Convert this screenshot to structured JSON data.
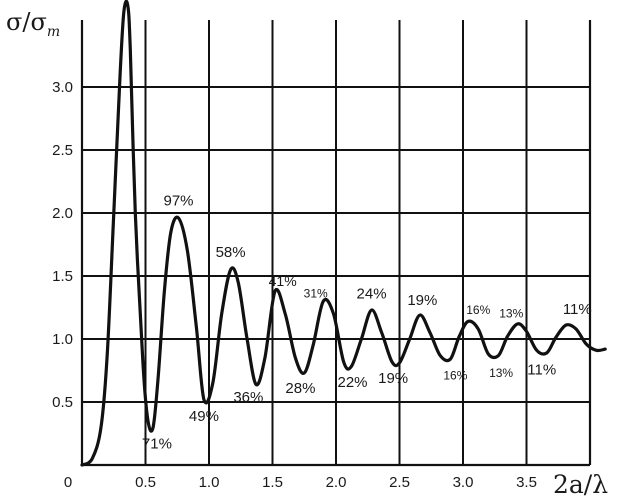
{
  "chart_data": {
    "type": "line",
    "ylabel": {
      "main": "σ/σ",
      "sub": "m"
    },
    "xlabel": "2a/λ",
    "xlim": [
      0,
      4.15
    ],
    "ylim": [
      0,
      3.6
    ],
    "xticks": [
      0,
      0.5,
      1.0,
      1.5,
      2.0,
      2.5,
      3.0,
      3.5
    ],
    "xtick_labels": [
      "0",
      "0.5",
      "1.0",
      "1.5",
      "2.0",
      "2.5",
      "3.0",
      "3.5"
    ],
    "yticks": [
      0.5,
      1.0,
      1.5,
      2.0,
      2.5,
      3.0
    ],
    "ytick_labels": [
      "0.5",
      "1.0",
      "1.5",
      "2.0",
      "2.5",
      "3.0"
    ],
    "grid": true,
    "series": [
      {
        "x": [
          0,
          0.08,
          0.15,
          0.2,
          0.25,
          0.3,
          0.33,
          0.36,
          0.38,
          0.42,
          0.48,
          0.52,
          0.56,
          0.6,
          0.65,
          0.7,
          0.76,
          0.83,
          0.9,
          0.96,
          1.03,
          1.1,
          1.17,
          1.23,
          1.3,
          1.37,
          1.44,
          1.52,
          1.6,
          1.68,
          1.75,
          1.82,
          1.9,
          1.98,
          2.06,
          2.12,
          2.2,
          2.28,
          2.36,
          2.44,
          2.5,
          2.58,
          2.66,
          2.74,
          2.82,
          2.9,
          2.97,
          3.04,
          3.12,
          3.2,
          3.28,
          3.35,
          3.43,
          3.5,
          3.58,
          3.66,
          3.73,
          3.81,
          3.89,
          3.97,
          4.05,
          4.12
        ],
        "y": [
          0,
          0.05,
          0.3,
          0.9,
          2.0,
          3.1,
          3.6,
          3.65,
          3.3,
          2.0,
          0.8,
          0.35,
          0.3,
          0.7,
          1.4,
          1.85,
          1.96,
          1.7,
          1.1,
          0.52,
          0.65,
          1.2,
          1.55,
          1.45,
          1.0,
          0.64,
          0.85,
          1.38,
          1.2,
          0.85,
          0.73,
          0.95,
          1.3,
          1.2,
          0.82,
          0.78,
          1.0,
          1.23,
          1.05,
          0.82,
          0.81,
          1.0,
          1.19,
          1.05,
          0.87,
          0.84,
          1.02,
          1.14,
          1.08,
          0.88,
          0.87,
          1.02,
          1.12,
          1.06,
          0.91,
          0.89,
          1.01,
          1.11,
          1.08,
          0.96,
          0.91,
          0.92
        ]
      }
    ],
    "annotations": [
      {
        "text": "97%",
        "x": 0.76,
        "y": 2.06,
        "size": 15
      },
      {
        "text": "58%",
        "x": 1.17,
        "y": 1.65,
        "size": 15
      },
      {
        "text": "41%",
        "x": 1.58,
        "y": 1.42,
        "size": 14
      },
      {
        "text": "31%",
        "x": 1.84,
        "y": 1.33,
        "size": 12
      },
      {
        "text": "24%",
        "x": 2.28,
        "y": 1.32,
        "size": 15
      },
      {
        "text": "19%",
        "x": 2.68,
        "y": 1.27,
        "size": 15
      },
      {
        "text": "16%",
        "x": 3.12,
        "y": 1.2,
        "size": 12
      },
      {
        "text": "13%",
        "x": 3.38,
        "y": 1.17,
        "size": 12
      },
      {
        "text": "11%",
        "x": 3.9,
        "y": 1.2,
        "size": 15
      },
      {
        "text": "71%",
        "x": 0.59,
        "y": 0.13,
        "size": 15
      },
      {
        "text": "49%",
        "x": 0.96,
        "y": 0.35,
        "size": 15
      },
      {
        "text": "36%",
        "x": 1.31,
        "y": 0.5,
        "size": 15
      },
      {
        "text": "28%",
        "x": 1.72,
        "y": 0.57,
        "size": 15
      },
      {
        "text": "22%",
        "x": 2.13,
        "y": 0.62,
        "size": 15
      },
      {
        "text": "19%",
        "x": 2.45,
        "y": 0.65,
        "size": 15
      },
      {
        "text": "16%",
        "x": 2.94,
        "y": 0.68,
        "size": 12
      },
      {
        "text": "13%",
        "x": 3.3,
        "y": 0.7,
        "size": 12
      },
      {
        "text": "11%",
        "x": 3.62,
        "y": 0.72,
        "size": 15
      }
    ]
  }
}
